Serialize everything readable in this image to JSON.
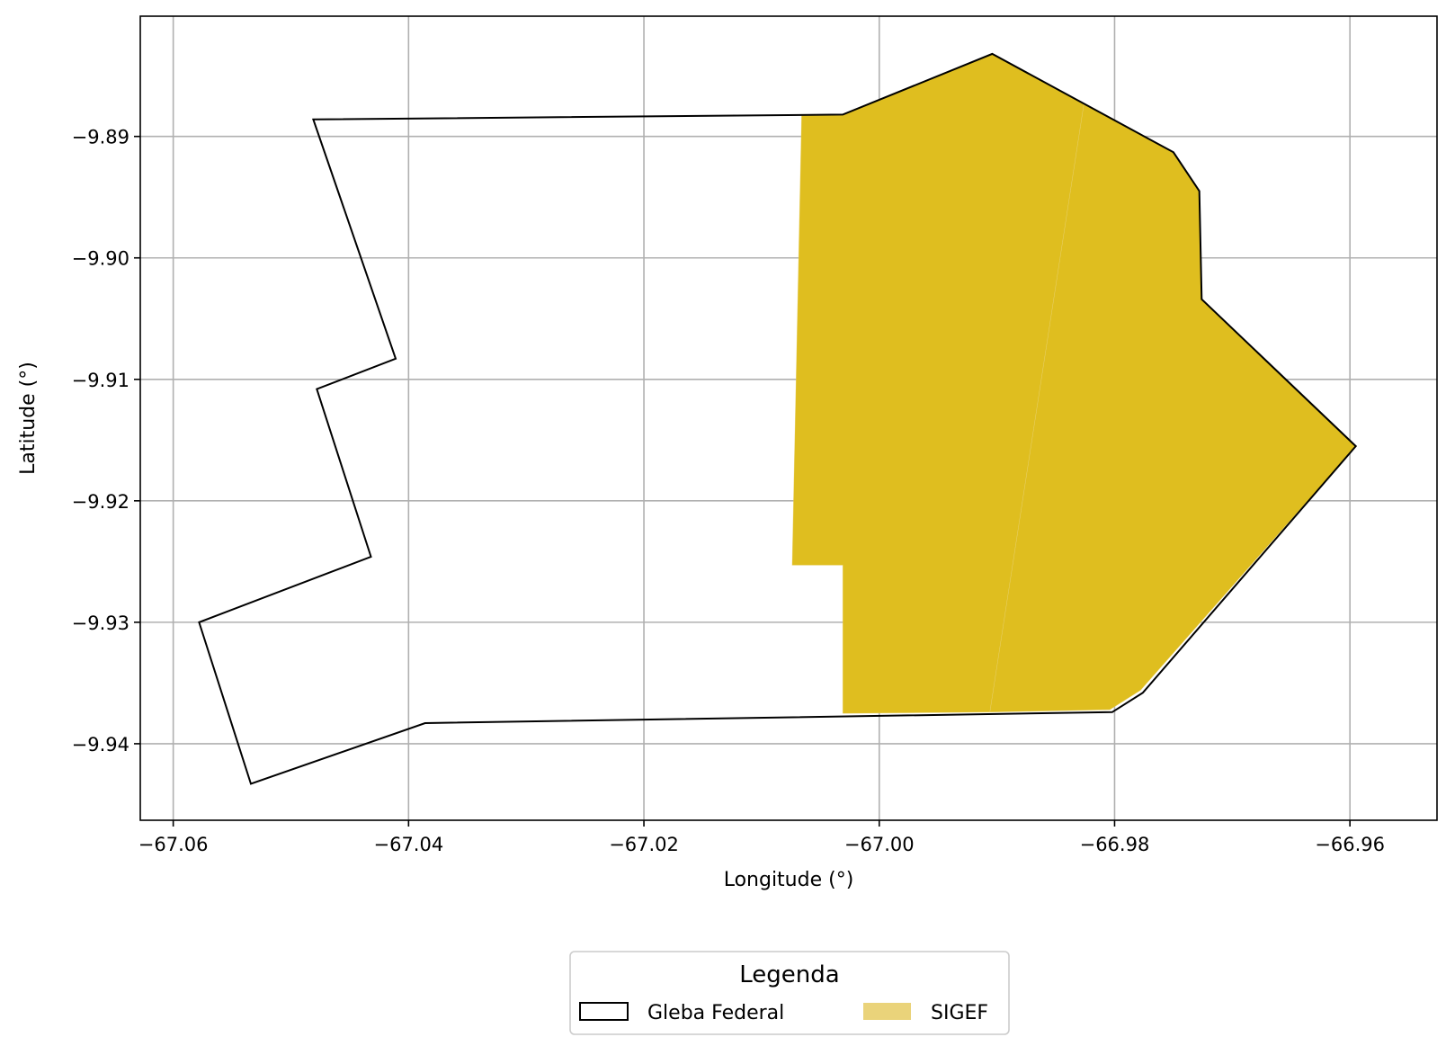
{
  "chart_data": {
    "type": "map",
    "xlabel": "Longitude (°)",
    "ylabel": "Latitude (°)",
    "xlim": [
      -67.0628,
      -66.9526
    ],
    "ylim": [
      -9.9463,
      -9.8801
    ],
    "xticks": [
      -67.06,
      -67.04,
      -67.02,
      -67.0,
      -66.98,
      -66.96
    ],
    "xtick_labels": [
      "−67.06",
      "−67.04",
      "−67.02",
      "−67.00",
      "−66.98",
      "−66.96"
    ],
    "yticks": [
      -9.89,
      -9.9,
      -9.91,
      -9.92,
      -9.93,
      -9.94
    ],
    "ytick_labels": [
      "−9.89",
      "−9.90",
      "−9.91",
      "−9.92",
      "−9.93",
      "−9.94"
    ],
    "grid": true,
    "layers": [
      {
        "name": "Gleba Federal",
        "style": "outline",
        "stroke": "#000000",
        "fill": "none",
        "coordinates": [
          [
            -67.0481,
            -9.8886
          ],
          [
            -67.0031,
            -9.8882
          ],
          [
            -66.9904,
            -9.8832
          ],
          [
            -66.975,
            -9.8913
          ],
          [
            -66.9728,
            -9.8945
          ],
          [
            -66.9726,
            -9.9034
          ],
          [
            -66.9595,
            -9.9155
          ],
          [
            -66.9776,
            -9.9358
          ],
          [
            -66.9802,
            -9.9374
          ],
          [
            -67.0386,
            -9.9383
          ],
          [
            -67.0534,
            -9.9433
          ],
          [
            -67.0578,
            -9.93
          ],
          [
            -67.0432,
            -9.9246
          ],
          [
            -67.0478,
            -9.9108
          ],
          [
            -67.0411,
            -9.9083
          ]
        ]
      },
      {
        "name": "SIGEF",
        "style": "filled",
        "fill": "#dfbe1f",
        "stroke": "none",
        "parcels": [
          [
            [
              -67.0066,
              -9.8882
            ],
            [
              -67.0031,
              -9.8882
            ],
            [
              -66.9904,
              -9.8832
            ],
            [
              -66.9826,
              -9.8873
            ],
            [
              -66.9906,
              -9.9374
            ],
            [
              -67.0031,
              -9.9375
            ],
            [
              -67.0031,
              -9.9253
            ],
            [
              -67.0074,
              -9.9253
            ]
          ],
          [
            [
              -66.9826,
              -9.8873
            ],
            [
              -66.975,
              -9.8913
            ],
            [
              -66.9728,
              -9.8945
            ],
            [
              -66.9726,
              -9.9034
            ],
            [
              -66.9595,
              -9.9155
            ],
            [
              -66.9778,
              -9.9356
            ],
            [
              -66.9804,
              -9.9372
            ],
            [
              -66.9906,
              -9.9374
            ]
          ]
        ]
      }
    ],
    "legend": {
      "title": "Legenda",
      "placement": "bottom-center",
      "entries": [
        {
          "label": "Gleba Federal",
          "style": "outline",
          "color": "#000000"
        },
        {
          "label": "SIGEF",
          "style": "filled",
          "color": "#ead37a"
        }
      ]
    }
  }
}
